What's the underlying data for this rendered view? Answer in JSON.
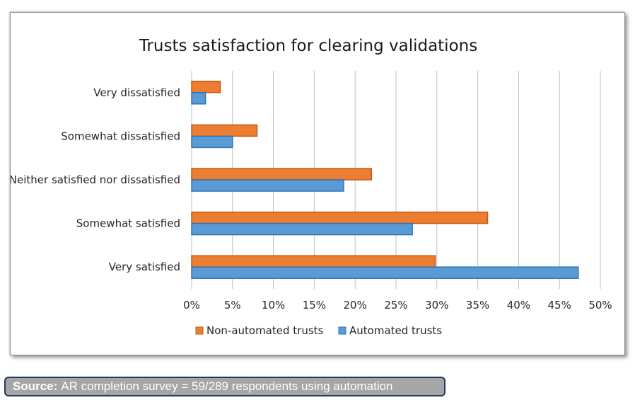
{
  "chart_data": {
    "type": "bar",
    "orientation": "horizontal",
    "title": "Trusts satisfaction for clearing validations",
    "categories": [
      "Very dissatisfied",
      "Somewhat dissatisfied",
      "Neither satisfied nor dissatisfied",
      "Somewhat satisfied",
      "Very satisfied"
    ],
    "series": [
      {
        "name": "Non-automated trusts",
        "color": "#ed7d31",
        "values": [
          3.5,
          8,
          22,
          36.2,
          29.8
        ]
      },
      {
        "name": "Automated trusts",
        "color": "#5b9bd5",
        "values": [
          1.7,
          5,
          18.6,
          27,
          47.3
        ]
      }
    ],
    "x_ticks": [
      "0%",
      "5%",
      "10%",
      "15%",
      "20%",
      "25%",
      "30%",
      "35%",
      "40%",
      "45%",
      "50%"
    ],
    "xlim": [
      0,
      50
    ],
    "grid": true,
    "legend_position": "bottom"
  },
  "source": {
    "label": "Source:",
    "text": "AR completion survey = 59/289 respondents using automation"
  }
}
